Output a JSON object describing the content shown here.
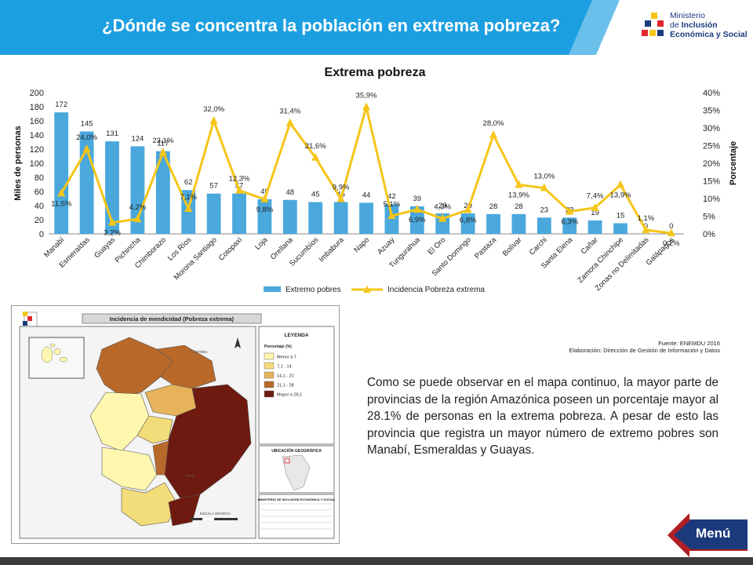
{
  "header": {
    "title": "¿Dónde se concentra la población en extrema pobreza?",
    "logo_line1": "Ministerio",
    "logo_line2": "de Inclusión",
    "logo_line3": "Económica y Social",
    "colors": {
      "banner": "#1c9fe0",
      "banner_dark": "#1a3a7c"
    }
  },
  "chart_data": {
    "type": "bar",
    "title": "Extrema pobreza",
    "ylabel": "Miles de personas",
    "y2label": "Porcentaje",
    "ylim": [
      0,
      200
    ],
    "y2lim": [
      0,
      40
    ],
    "yticks": [
      "0",
      "20",
      "40",
      "60",
      "80",
      "100",
      "120",
      "140",
      "160",
      "180",
      "200"
    ],
    "y2ticks": [
      "0%",
      "5%",
      "10%",
      "15%",
      "20%",
      "25%",
      "30%",
      "35%",
      "40%"
    ],
    "categories": [
      "Manabí",
      "Esmeraldas",
      "Guayas",
      "Pichincha",
      "Chimborazo",
      "Los Ríos",
      "Morona Santiago",
      "Cotopaxi",
      "Loja",
      "Orellana",
      "Sucumbíos",
      "Imbabura",
      "Napo",
      "Azuay",
      "Tungurahua",
      "El Oro",
      "Santo Domingo",
      "Pastaza",
      "Bolívar",
      "Carchi",
      "Santa Elena",
      "Cañar",
      "Zamora Chinchipe",
      "Zonas no Delimitadas",
      "Galápagos"
    ],
    "series": [
      {
        "name": "Extremo pobres",
        "kind": "bar",
        "color": "#4aa8dc",
        "values": [
          172,
          145,
          131,
          124,
          117,
          62,
          57,
          57,
          49,
          48,
          45,
          45,
          44,
          42,
          39,
          29,
          29,
          28,
          28,
          23,
          23,
          19,
          15,
          0,
          0
        ]
      },
      {
        "name": "Incidencia Pobreza extrema",
        "kind": "line",
        "axis": "right",
        "color": "#f5c518",
        "values": [
          11.5,
          24.0,
          3.2,
          4.2,
          23.1,
          7.1,
          32.0,
          12.3,
          9.8,
          31.4,
          21.6,
          9.9,
          35.9,
          5.1,
          6.9,
          4.3,
          6.8,
          28.0,
          13.9,
          13.0,
          6.3,
          7.4,
          13.9,
          1.1,
          0.2
        ],
        "labels": [
          "11,5%",
          "24,0%",
          "3,2%",
          "4,2%",
          "23,1%",
          "7,1%",
          "32,0%",
          "12,3%",
          "9,8%",
          "31,4%",
          "21,6%",
          "9,9%",
          "35,9%",
          "5,1%",
          "6,9%",
          "4,3%",
          "6,8%",
          "28,0%",
          "13,9%",
          "13,0%",
          "6,3%",
          "7,4%",
          "13,9%",
          "1,1%",
          "0,2%"
        ]
      }
    ],
    "legend": "bottom"
  },
  "map": {
    "title": "Incidencia de mendicidad (Pobreza extrema)",
    "legend_title": "LEYENDA",
    "legend_subtitle": "Porcentaje (%)",
    "legend_items": [
      {
        "label": "Menor a 7",
        "color": "#fff7b0"
      },
      {
        "label": "7,1 - 14",
        "color": "#f3dc7a"
      },
      {
        "label": "14,1 - 21",
        "color": "#e6b35a"
      },
      {
        "label": "21,1 - 28",
        "color": "#b8692a"
      },
      {
        "label": "Mayor a 28,1",
        "color": "#6e1a10"
      }
    ],
    "location_title": "UBICACIÓN GEOGRÁFICA",
    "institution": "MINISTERIO DE INCLUSIÓN ECONÓMICA Y SOCIAL",
    "scale_label": "ESCALA GRÁFICA",
    "neighbors": [
      "Colombia",
      "Perú"
    ]
  },
  "source": {
    "line1": "Fuente: ENEMDU 2016",
    "line2": "Elaboración: Dirección de Gestión de Información y Datos"
  },
  "body": {
    "text": "Como se puede observar en el mapa continuo, la mayor parte de provincias de la región Amazónica poseen un porcentaje mayor al 28.1% de personas en la extrema pobreza. A pesar de esto las provincia que registra un mayor número de extremo pobres son Manabí, Esmeraldas y Guayas."
  },
  "nav": {
    "menu_label": "Menú"
  }
}
